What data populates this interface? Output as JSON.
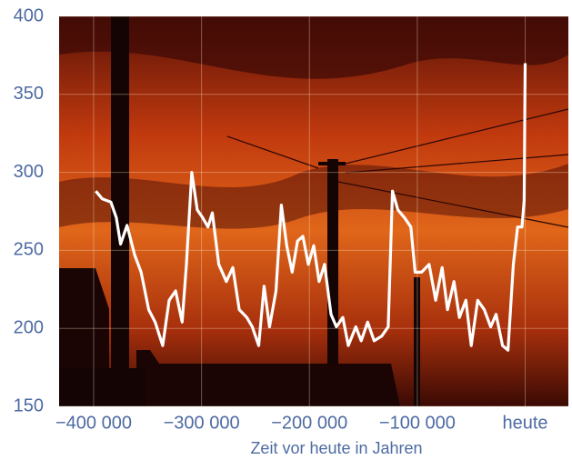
{
  "chart_data": {
    "type": "line",
    "xlabel": "Zeit vor heute in Jahren",
    "x": [
      -398000,
      -392000,
      -384000,
      -379000,
      -375000,
      -369000,
      -362000,
      -356000,
      -349000,
      -343000,
      -336000,
      -330000,
      -324000,
      -318000,
      -314000,
      -309000,
      -304000,
      -299000,
      -294000,
      -290000,
      -284000,
      -277000,
      -271000,
      -265000,
      -258000,
      -253000,
      -247000,
      -242000,
      -237000,
      -231000,
      -226000,
      -221000,
      -216000,
      -211000,
      -206000,
      -201000,
      -196000,
      -191000,
      -186000,
      -180000,
      -175000,
      -169000,
      -164000,
      -157000,
      -152000,
      -146000,
      -140000,
      -133000,
      -127000,
      -123000,
      -118000,
      -112000,
      -106000,
      -102000,
      -96000,
      -89000,
      -83000,
      -77000,
      -72000,
      -66000,
      -61000,
      -55000,
      -50000,
      -44000,
      -38000,
      -32000,
      -27000,
      -21000,
      -16000,
      -11000,
      -7000,
      -3000,
      -1000,
      0
    ],
    "values": [
      288,
      283,
      281,
      271,
      254,
      266,
      247,
      236,
      212,
      204,
      189,
      218,
      224,
      204,
      241,
      300,
      276,
      271,
      265,
      274,
      241,
      230,
      239,
      212,
      207,
      201,
      189,
      227,
      201,
      224,
      279,
      253,
      236,
      256,
      259,
      241,
      253,
      230,
      241,
      209,
      201,
      207,
      189,
      201,
      192,
      204,
      192,
      195,
      201,
      288,
      276,
      271,
      265,
      236,
      236,
      241,
      218,
      239,
      212,
      230,
      207,
      218,
      189,
      218,
      212,
      201,
      209,
      189,
      186,
      241,
      265,
      265,
      282,
      370
    ],
    "color": "#ffffff",
    "xlim": [
      -432000,
      40000
    ],
    "ylim": [
      150,
      400
    ],
    "xticks": [
      {
        "value": -400000,
        "label": "−400 000"
      },
      {
        "value": -300000,
        "label": "−300 000"
      },
      {
        "value": -200000,
        "label": "−200 000"
      },
      {
        "value": -100000,
        "label": "−100 000"
      },
      {
        "value": 0,
        "label": "heute"
      }
    ],
    "yticks": [
      150,
      200,
      250,
      300,
      350,
      400
    ],
    "grid": true
  }
}
